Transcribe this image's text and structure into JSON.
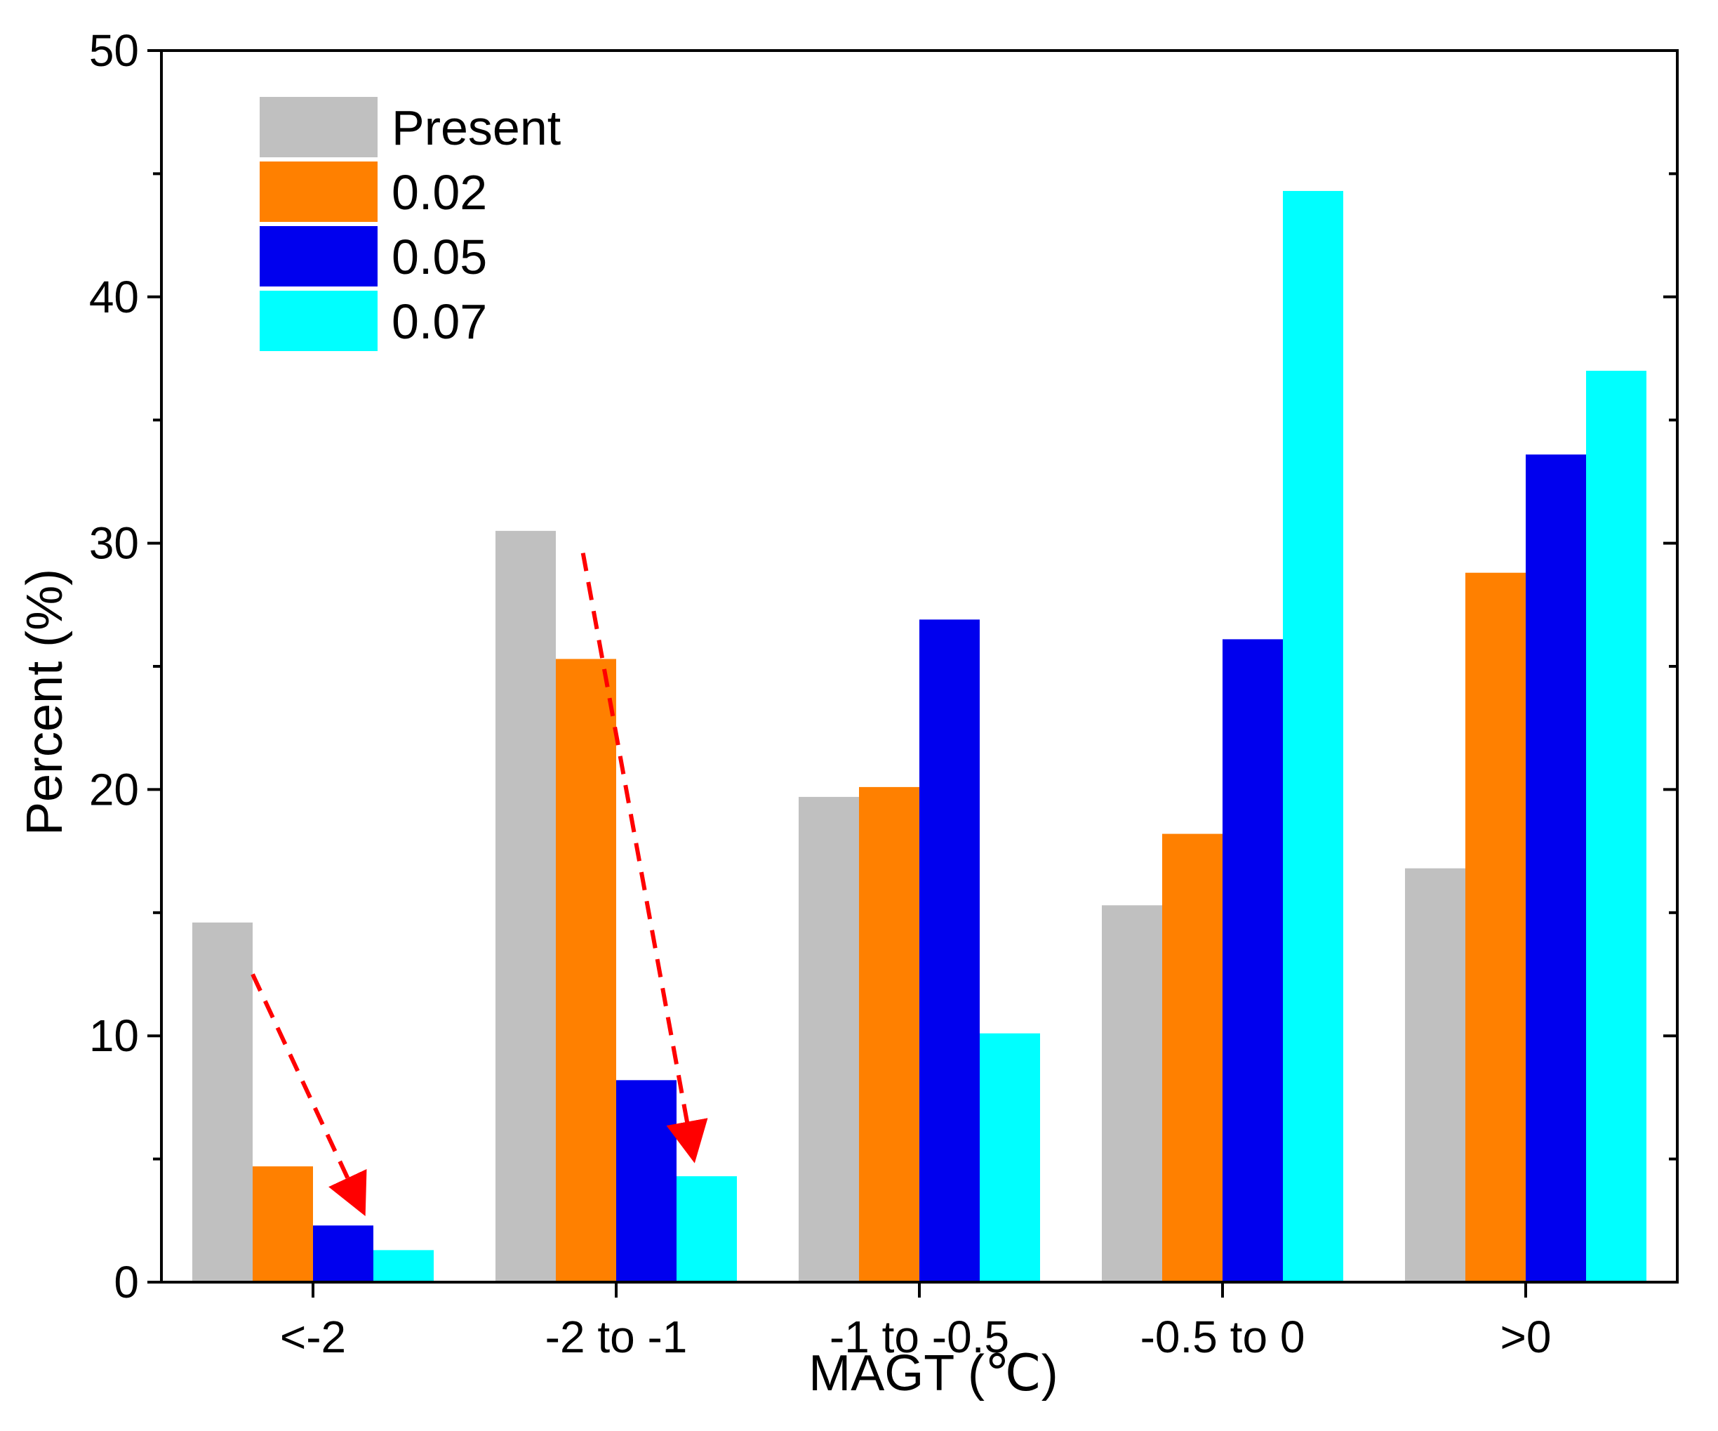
{
  "chart_data": {
    "type": "bar",
    "title": "",
    "xlabel": "MAGT (℃)",
    "ylabel": "Percent (%)",
    "ylim": [
      0,
      50
    ],
    "yticks": [
      0,
      10,
      20,
      30,
      40,
      50
    ],
    "categories": [
      "<-2",
      "-2 to -1",
      "-1 to -0.5",
      "-0.5 to 0",
      ">0"
    ],
    "series": [
      {
        "name": "Present",
        "color": "#c0c0c0",
        "values": [
          14.6,
          30.5,
          19.7,
          15.3,
          16.8
        ]
      },
      {
        "name": "0.02",
        "color": "#ff8000",
        "values": [
          4.7,
          25.3,
          20.1,
          18.2,
          28.8
        ]
      },
      {
        "name": "0.05",
        "color": "#0000ee",
        "values": [
          2.3,
          8.2,
          26.9,
          26.1,
          33.6
        ]
      },
      {
        "name": "0.07",
        "color": "#00ffff",
        "values": [
          1.3,
          4.3,
          10.1,
          44.3,
          37.0
        ]
      }
    ],
    "legend_position": "top-left",
    "grid": false,
    "annotations": [
      {
        "type": "dashed-arrow",
        "color": "#ff0000",
        "category": "<-2",
        "description": "decreasing trend"
      },
      {
        "type": "dashed-arrow",
        "color": "#ff0000",
        "category": "-2 to -1",
        "description": "decreasing trend"
      }
    ]
  }
}
